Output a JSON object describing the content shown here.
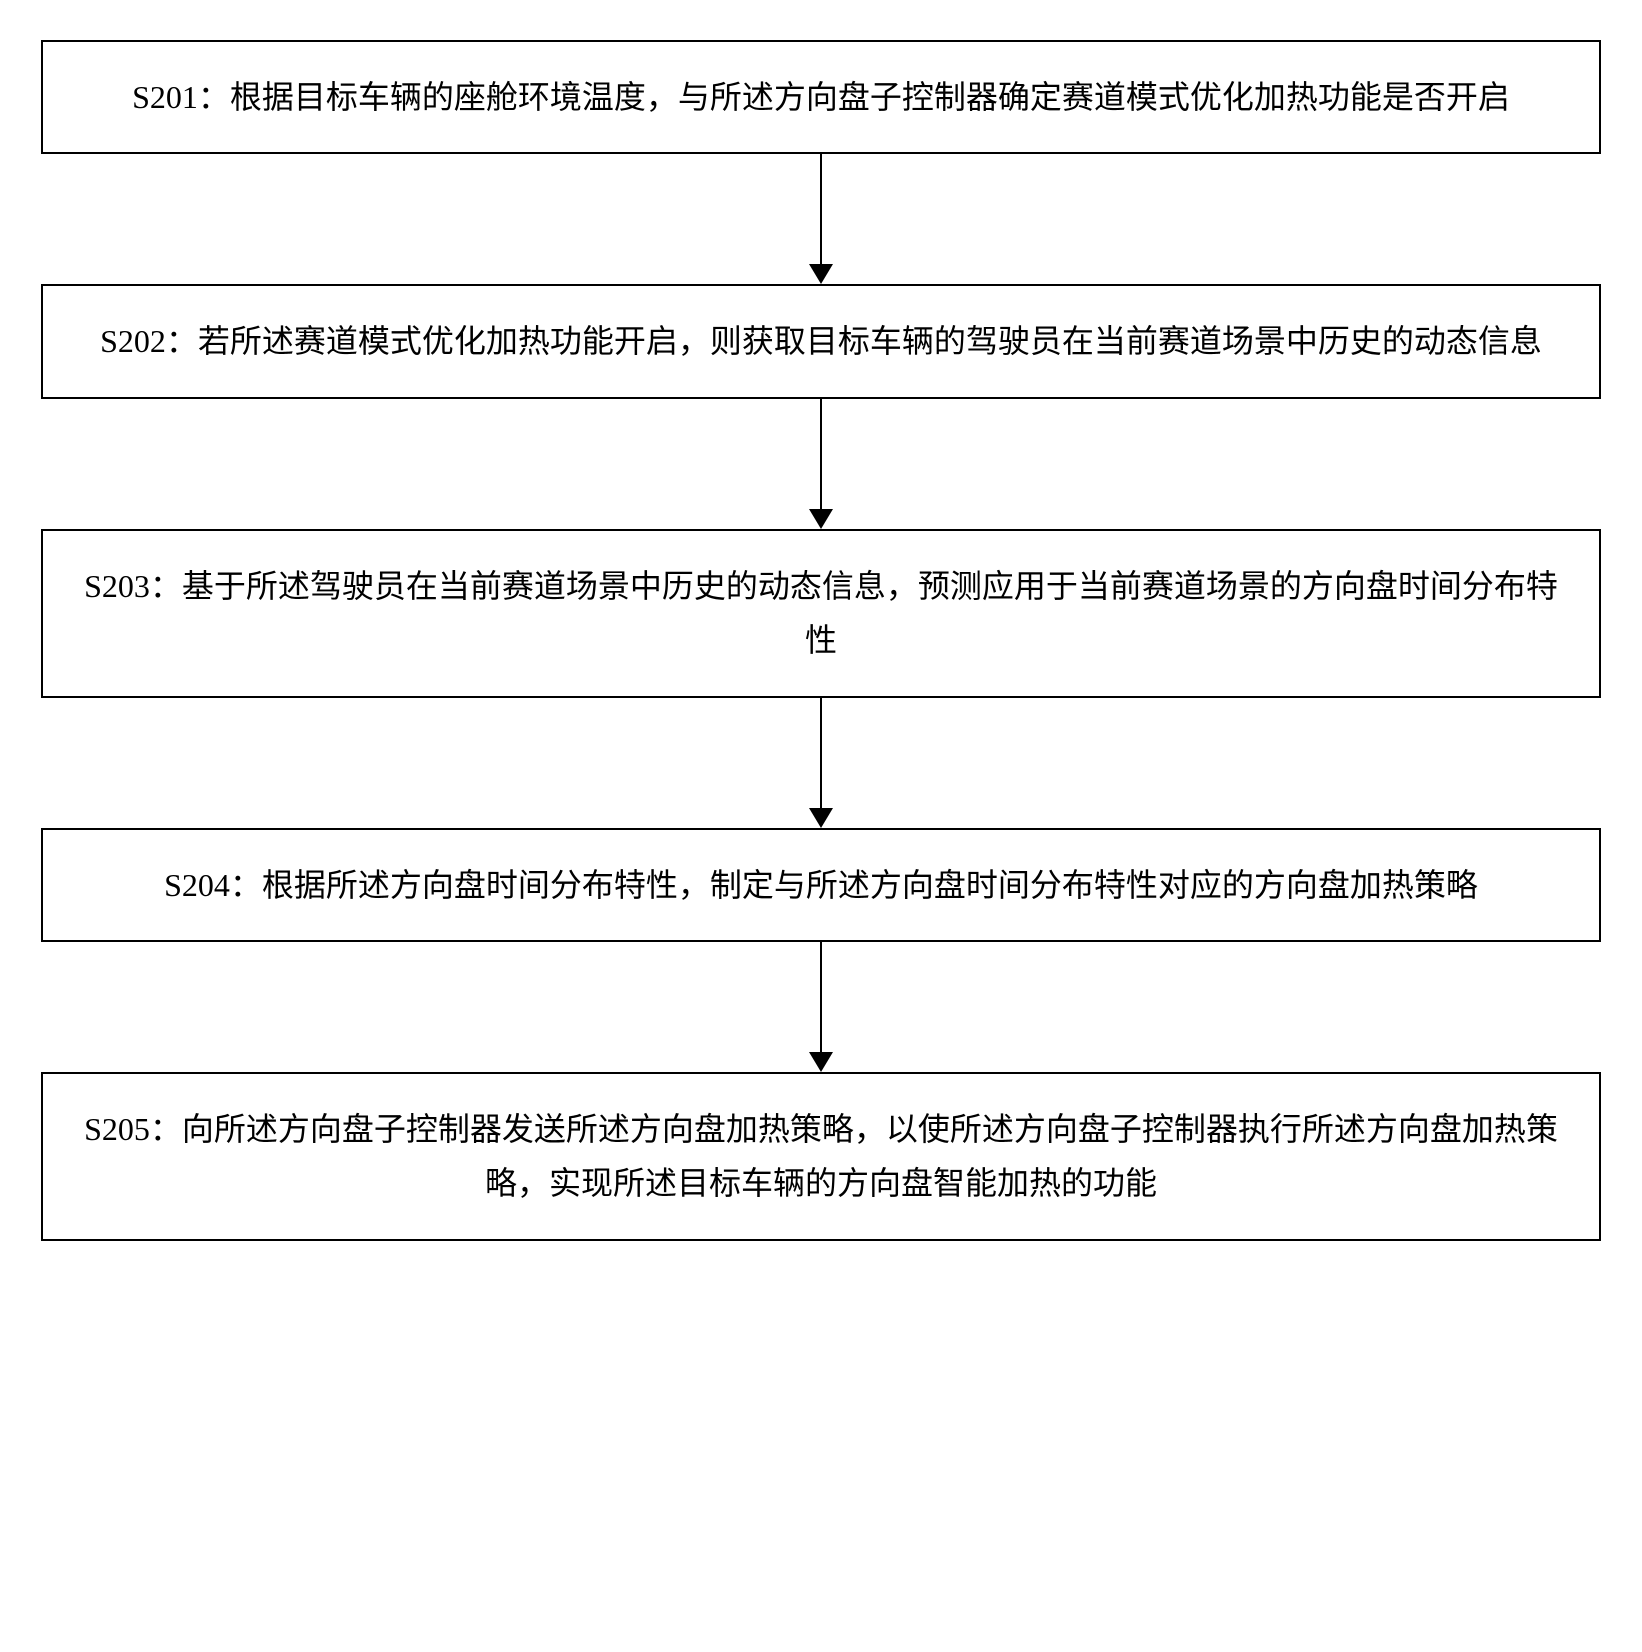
{
  "flowchart": {
    "type": "flowchart",
    "direction": "top-down",
    "background_color": "#ffffff",
    "box_border_color": "#000000",
    "box_border_width": 2,
    "box_background_color": "#ffffff",
    "text_color": "#000000",
    "font_size": 32,
    "font_family": "SimSun",
    "arrow_color": "#000000",
    "arrow_width": 2,
    "arrow_head_size": 20,
    "box_width_ratio": 1.0,
    "vertical_gap": 130,
    "steps": [
      {
        "id": "S201",
        "text": "S201：根据目标车辆的座舱环境温度，与所述方向盘子控制器确定赛道模式优化加热功能是否开启"
      },
      {
        "id": "S202",
        "text": "S202：若所述赛道模式优化加热功能开启，则获取目标车辆的驾驶员在当前赛道场景中历史的动态信息"
      },
      {
        "id": "S203",
        "text": "S203：基于所述驾驶员在当前赛道场景中历史的动态信息，预测应用于当前赛道场景的方向盘时间分布特性"
      },
      {
        "id": "S204",
        "text": "S204：根据所述方向盘时间分布特性，制定与所述方向盘时间分布特性对应的方向盘加热策略"
      },
      {
        "id": "S205",
        "text": "S205：向所述方向盘子控制器发送所述方向盘加热策略，以使所述方向盘子控制器执行所述方向盘加热策略，实现所述目标车辆的方向盘智能加热的功能"
      }
    ],
    "edges": [
      {
        "from": "S201",
        "to": "S202"
      },
      {
        "from": "S202",
        "to": "S203"
      },
      {
        "from": "S203",
        "to": "S204"
      },
      {
        "from": "S204",
        "to": "S205"
      }
    ]
  }
}
